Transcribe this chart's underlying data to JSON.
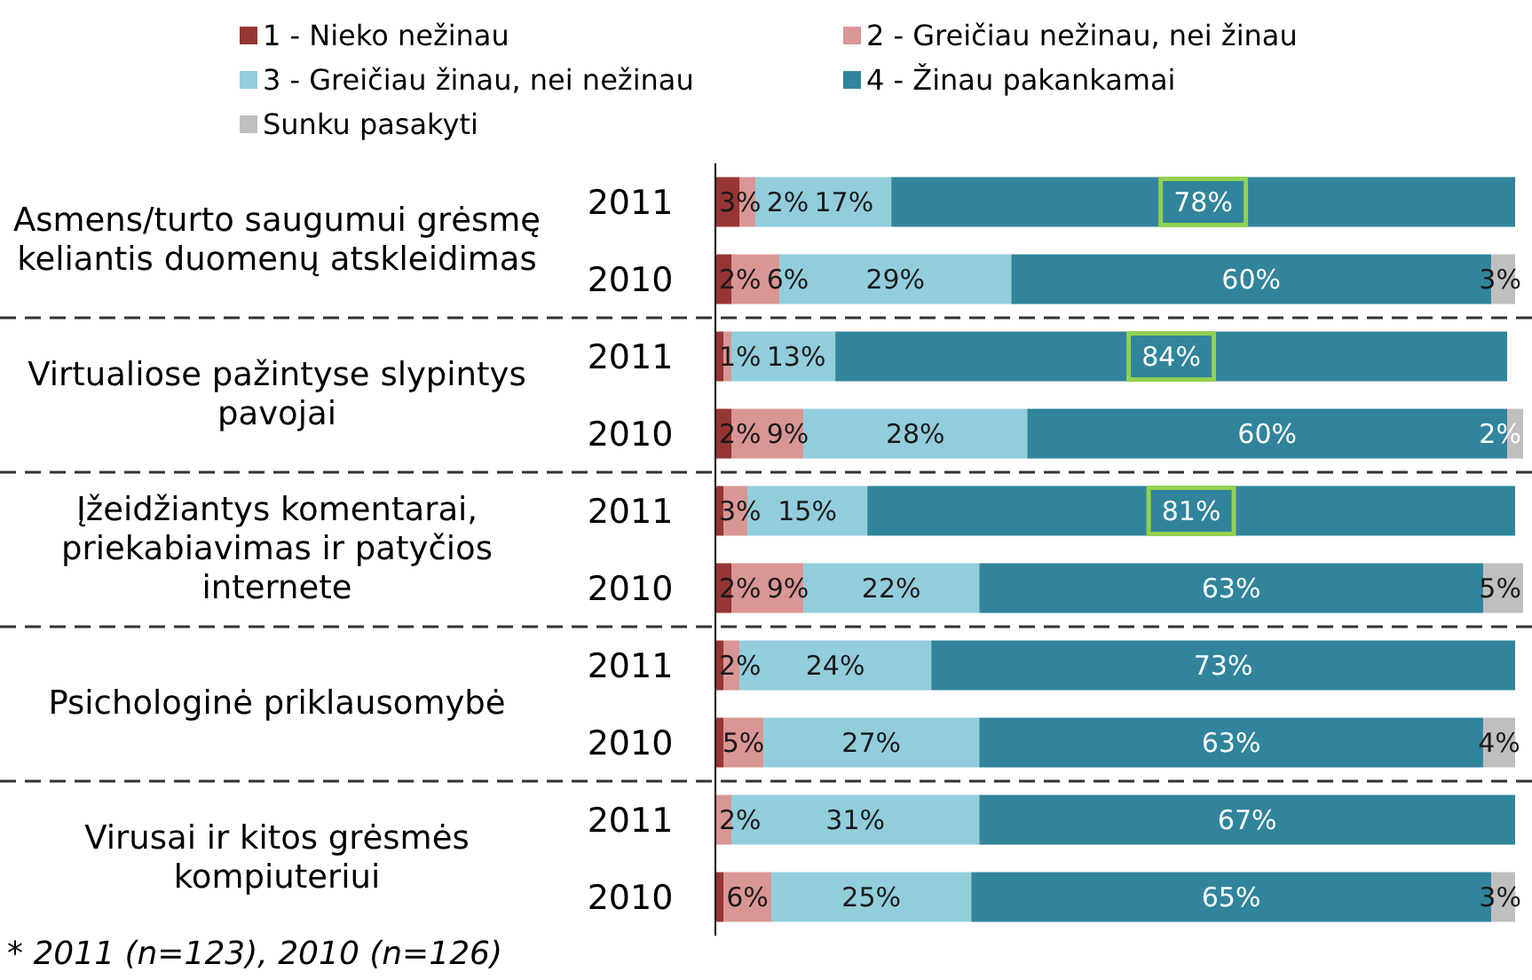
{
  "chart_data": {
    "type": "bar",
    "orientation": "horizontal",
    "stacked": true,
    "legend": "top",
    "xlim": [
      0,
      101
    ],
    "tick_labels": "y",
    "categories": [
      "2011",
      "2010",
      "2011",
      "2010",
      "2011",
      "2010",
      "2011",
      "2010",
      "2011",
      "2010"
    ],
    "series": [
      {
        "name": "1 - Nieko nežinau",
        "color": "#963634",
        "values": [
          3,
          2,
          1,
          2,
          1,
          2,
          1,
          1,
          null,
          1
        ],
        "value_labels": [
          "3%",
          "2%",
          "1%",
          "2%",
          null,
          "2%",
          null,
          null,
          null,
          null
        ]
      },
      {
        "name": "2 - Greičiau nežinau, nei žinau",
        "color": "#d99694",
        "values": [
          2,
          6,
          1,
          9,
          3,
          9,
          2,
          5,
          2,
          6
        ],
        "value_labels": [
          "2%",
          "6%",
          null,
          "9%",
          "3%",
          "9%",
          "2%",
          "5%",
          "2%",
          "6%"
        ]
      },
      {
        "name": "3 - Greičiau žinau, nei nežinau",
        "color": "#92cddc",
        "values": [
          17,
          29,
          13,
          28,
          15,
          22,
          24,
          27,
          31,
          25
        ],
        "value_labels": [
          "17%",
          "29%",
          "13%",
          "28%",
          "15%",
          "22%",
          "24%",
          "27%",
          "31%",
          "25%"
        ]
      },
      {
        "name": "4 - Žinau pakankamai",
        "color": "#31849b",
        "values": [
          78,
          60,
          84,
          60,
          81,
          63,
          73,
          63,
          67,
          65
        ],
        "value_labels": [
          "78%",
          "60%",
          "84%",
          "60%",
          "81%",
          "63%",
          "73%",
          "63%",
          "67%",
          "65%"
        ]
      },
      {
        "name": "Sunku pasakyti",
        "color": "#bfbfbf",
        "values": [
          null,
          3,
          null,
          2,
          null,
          5,
          null,
          4,
          null,
          3
        ],
        "value_labels": [
          null,
          "3%",
          null,
          "2%",
          null,
          "5%",
          null,
          "4%",
          null,
          "3%"
        ]
      }
    ],
    "annotations": [
      "Asmens/turto saugumui grėsmę keliantis duomenų atskleidimas",
      "Virtualiose pažintyse slypintys pavojai",
      "Įžeidžiantys komentarai, priekabiavimas ir patyčios internete",
      "Psichologinė priklausomybė",
      "Virusai ir kitos grėsmės kompiuteriui",
      "* 2011 (n=123), 2010 (n=126)"
    ]
  }
}
